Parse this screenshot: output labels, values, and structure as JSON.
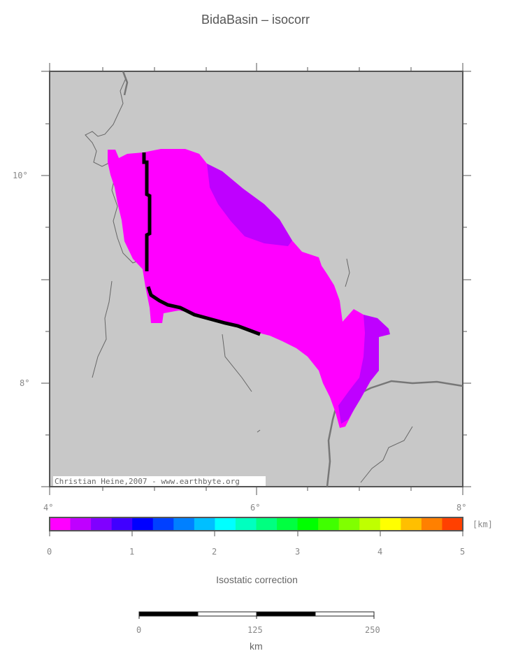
{
  "title": "BidaBasin – isocorr",
  "map": {
    "lat_labels": [
      "10°",
      "8°"
    ],
    "lon_labels": [
      "4°",
      "6°",
      "8°"
    ],
    "credit": "Christian Heine,2007 - www.earthbyte.org",
    "colors": {
      "land": "#c8c8c8",
      "frame": "#555555",
      "coast": "#666666",
      "basin_magenta": "#ff00ff",
      "basin_purple": "#bf00ff",
      "outline": "#000000"
    }
  },
  "colorbar": {
    "unit": "[km]",
    "tick_labels": [
      "0",
      "1",
      "2",
      "3",
      "4",
      "5"
    ],
    "title": "Isostatic correction",
    "colors": [
      "#ff00ff",
      "#bf00ff",
      "#8000ff",
      "#4000ff",
      "#0000ff",
      "#0040ff",
      "#0080ff",
      "#00bfff",
      "#00ffff",
      "#00ffbf",
      "#00ff80",
      "#00ff40",
      "#00ff00",
      "#40ff00",
      "#80ff00",
      "#bfff00",
      "#ffff00",
      "#ffbf00",
      "#ff8000",
      "#ff4000"
    ]
  },
  "scalebar": {
    "labels": [
      "0",
      "125",
      "250"
    ],
    "unit": "km"
  }
}
